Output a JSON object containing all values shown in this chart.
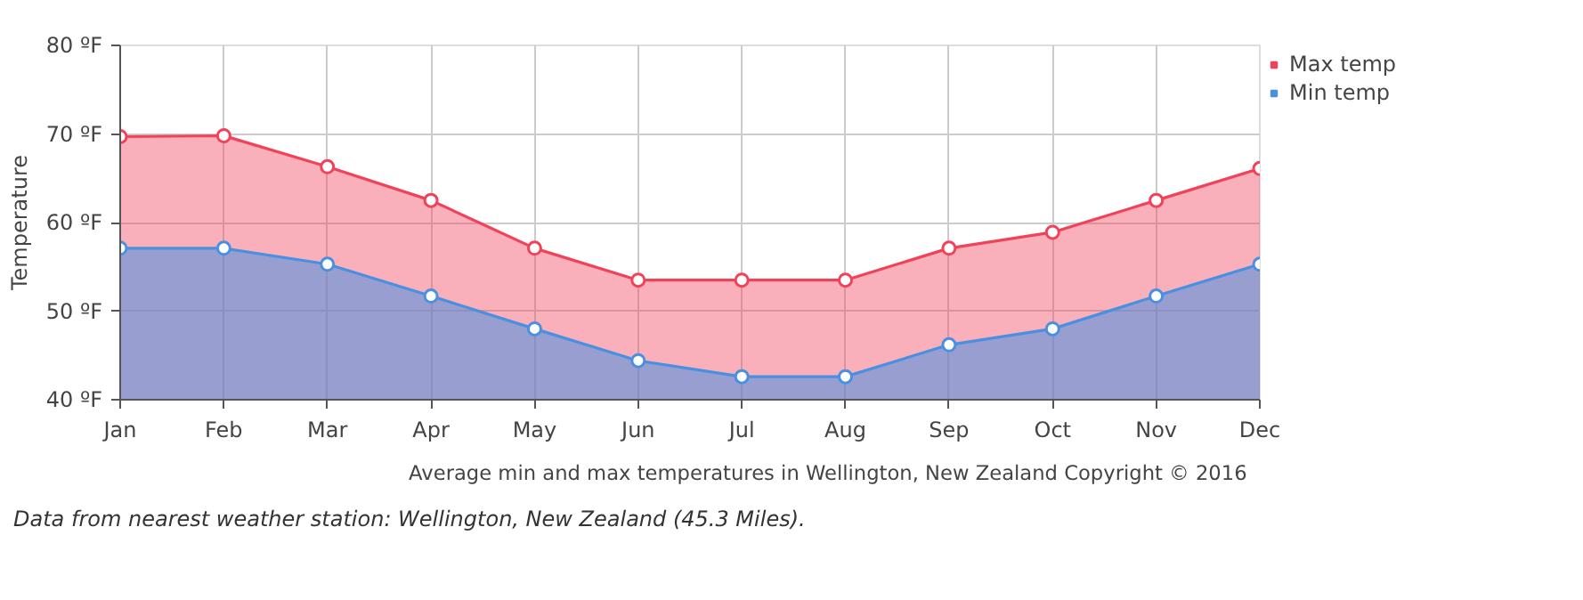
{
  "chart_data": {
    "type": "area",
    "ylabel": "Temperature",
    "categories": [
      "Jan",
      "Feb",
      "Mar",
      "Apr",
      "May",
      "Jun",
      "Jul",
      "Aug",
      "Sep",
      "Oct",
      "Nov",
      "Dec"
    ],
    "series": [
      {
        "name": "Max temp",
        "color": "#f0435a",
        "values": [
          69.7,
          69.8,
          66.3,
          62.5,
          57.1,
          53.5,
          53.5,
          53.5,
          57.1,
          58.9,
          62.5,
          66.1
        ]
      },
      {
        "name": "Min temp",
        "color": "#4a90e2",
        "values": [
          57.1,
          57.1,
          55.3,
          51.7,
          48.0,
          44.4,
          42.6,
          42.6,
          46.2,
          48.0,
          51.7,
          55.3
        ]
      }
    ],
    "ylim": [
      40,
      80
    ],
    "yticks": [
      {
        "value": 40,
        "label": "40 ºF"
      },
      {
        "value": 50,
        "label": "50 ºF"
      },
      {
        "value": 60,
        "label": "60 ºF"
      },
      {
        "value": 70,
        "label": "70 ºF"
      },
      {
        "value": 80,
        "label": "80 ºF"
      }
    ],
    "grid": true,
    "legend": "top right",
    "marker": "circle",
    "annotations": [
      "Average min and max temperatures in Wellington, New Zealand   Copyright © 2016",
      "Data from nearest weather station: Wellington, New Zealand (45.3 Miles)."
    ]
  }
}
